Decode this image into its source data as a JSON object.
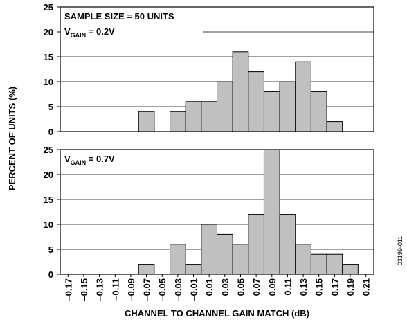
{
  "chart_data": [
    {
      "type": "bar",
      "annotation": {
        "line1": "SAMPLE SIZE = 50 UNITS",
        "symbol": "V",
        "subscript": "GAIN",
        "rest": " = 0.2V"
      },
      "values": [
        0,
        0,
        0,
        0,
        0,
        4,
        0,
        4,
        6,
        6,
        10,
        16,
        12,
        8,
        10,
        14,
        8,
        2,
        0,
        0
      ],
      "color": "#c0c0c0",
      "ylim": [
        0,
        25
      ],
      "yticks": [
        0,
        5,
        10,
        15,
        20,
        25
      ],
      "grid": true
    },
    {
      "type": "bar",
      "annotation": {
        "symbol": "V",
        "subscript": "GAIN",
        "rest": " = 0.7V"
      },
      "categories": [
        "–0.17",
        "–0.15",
        "–0.13",
        "–0.11",
        "–0.09",
        "–0.07",
        "–0.05",
        "–0.03",
        "–0.01",
        "0.01",
        "0.03",
        "0.05",
        "0.07",
        "0.09",
        "0.11",
        "0.13",
        "0.15",
        "0.17",
        "0.19",
        "0.21"
      ],
      "values": [
        0,
        0,
        0,
        0,
        0,
        2,
        0,
        6,
        2,
        10,
        8,
        6,
        12,
        25,
        12,
        6,
        4,
        4,
        2,
        0
      ],
      "color": "#c0c0c0",
      "ylim": [
        0,
        25
      ],
      "yticks": [
        0,
        5,
        10,
        15,
        20,
        25
      ],
      "grid": true,
      "x_label": "CHANNEL TO CHANNEL GAIN MATCH (dB)"
    }
  ],
  "y_label": "PERCENT OF UNITS (%)",
  "figure_id": "03199-011"
}
